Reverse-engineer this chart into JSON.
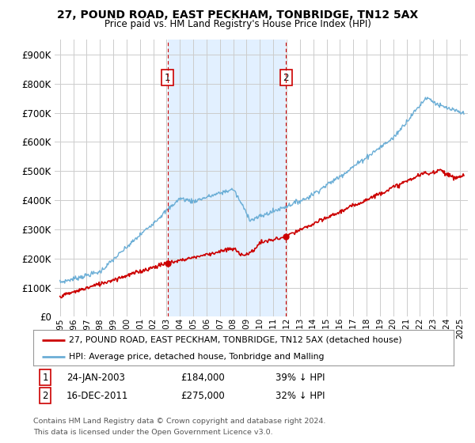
{
  "title": "27, POUND ROAD, EAST PECKHAM, TONBRIDGE, TN12 5AX",
  "subtitle": "Price paid vs. HM Land Registry's House Price Index (HPI)",
  "ylabel_ticks": [
    "£0",
    "£100K",
    "£200K",
    "£300K",
    "£400K",
    "£500K",
    "£600K",
    "£700K",
    "£800K",
    "£900K"
  ],
  "ytick_values": [
    0,
    100000,
    200000,
    300000,
    400000,
    500000,
    600000,
    700000,
    800000,
    900000
  ],
  "ylim": [
    0,
    950000
  ],
  "xlim_start": 1994.6,
  "xlim_end": 2025.6,
  "hpi_color": "#6baed6",
  "price_color": "#cc0000",
  "sale1_x": 2003.065,
  "sale1_y": 184000,
  "sale1_date": "24-JAN-2003",
  "sale1_price": "£184,000",
  "sale1_pct": "39% ↓ HPI",
  "sale2_x": 2011.96,
  "sale2_y": 275000,
  "sale2_date": "16-DEC-2011",
  "sale2_price": "£275,000",
  "sale2_pct": "32% ↓ HPI",
  "legend_line1": "27, POUND ROAD, EAST PECKHAM, TONBRIDGE, TN12 5AX (detached house)",
  "legend_line2": "HPI: Average price, detached house, Tonbridge and Malling",
  "footnote1": "Contains HM Land Registry data © Crown copyright and database right 2024.",
  "footnote2": "This data is licensed under the Open Government Licence v3.0.",
  "background_color": "#ffffff",
  "plot_bg_color": "#ffffff",
  "shade_color": "#ddeeff",
  "grid_color": "#cccccc",
  "x_ticks": [
    1995,
    1996,
    1997,
    1998,
    1999,
    2000,
    2001,
    2002,
    2003,
    2004,
    2005,
    2006,
    2007,
    2008,
    2009,
    2010,
    2011,
    2012,
    2013,
    2014,
    2015,
    2016,
    2017,
    2018,
    2019,
    2020,
    2021,
    2022,
    2023,
    2024,
    2025
  ]
}
